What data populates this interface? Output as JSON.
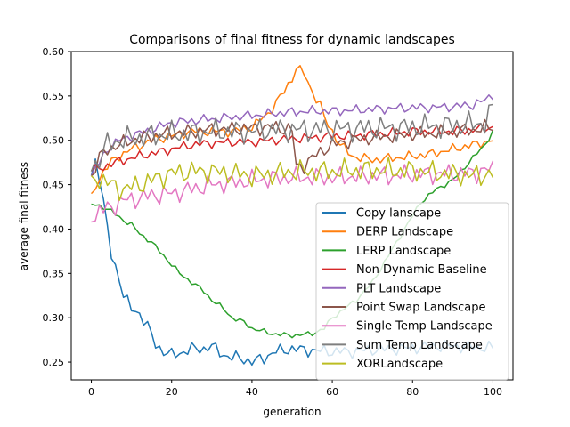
{
  "chart_data": {
    "type": "line",
    "title": "Comparisons of final fitness for dynamic landscapes",
    "xlabel": "generation",
    "ylabel": "average final fitness",
    "xlim": [
      -5,
      105
    ],
    "ylim": [
      0.23,
      0.6
    ],
    "xticks": [
      0,
      20,
      40,
      60,
      80,
      100
    ],
    "xtick_labels": [
      "0",
      "20",
      "40",
      "60",
      "80",
      "100"
    ],
    "yticks": [
      0.25,
      0.3,
      0.35,
      0.4,
      0.45,
      0.5,
      0.55,
      0.6
    ],
    "ytick_labels": [
      "0.25",
      "0.30",
      "0.35",
      "0.40",
      "0.45",
      "0.50",
      "0.55",
      "0.60"
    ],
    "grid": false,
    "legend_position": "lower-right",
    "series": [
      {
        "name": "Copy lanscape",
        "color": "#1f77b4",
        "keys": [
          [
            0,
            0.46
          ],
          [
            1,
            0.478
          ],
          [
            2,
            0.46
          ],
          [
            3,
            0.43
          ],
          [
            4,
            0.4
          ],
          [
            5,
            0.37
          ],
          [
            7,
            0.345
          ],
          [
            8,
            0.325
          ],
          [
            10,
            0.31
          ],
          [
            12,
            0.305
          ],
          [
            14,
            0.29
          ],
          [
            16,
            0.27
          ],
          [
            18,
            0.262
          ],
          [
            20,
            0.258
          ],
          [
            22,
            0.26
          ],
          [
            25,
            0.265
          ],
          [
            28,
            0.265
          ],
          [
            30,
            0.268
          ],
          [
            33,
            0.258
          ],
          [
            35,
            0.255
          ],
          [
            37,
            0.255
          ],
          [
            40,
            0.25
          ],
          [
            43,
            0.255
          ],
          [
            46,
            0.262
          ],
          [
            50,
            0.265
          ],
          [
            55,
            0.263
          ],
          [
            60,
            0.262
          ],
          [
            65,
            0.262
          ],
          [
            70,
            0.264
          ],
          [
            75,
            0.265
          ],
          [
            80,
            0.266
          ],
          [
            85,
            0.268
          ],
          [
            90,
            0.268
          ],
          [
            95,
            0.267
          ],
          [
            100,
            0.266
          ]
        ],
        "amp": 0.005
      },
      {
        "name": "DERP Landscape",
        "color": "#ff7f0e",
        "keys": [
          [
            0,
            0.44
          ],
          [
            3,
            0.465
          ],
          [
            6,
            0.48
          ],
          [
            10,
            0.49
          ],
          [
            15,
            0.5
          ],
          [
            20,
            0.505
          ],
          [
            25,
            0.51
          ],
          [
            30,
            0.51
          ],
          [
            35,
            0.51
          ],
          [
            40,
            0.515
          ],
          [
            44,
            0.53
          ],
          [
            48,
            0.555
          ],
          [
            50,
            0.57
          ],
          [
            51,
            0.582
          ],
          [
            53,
            0.575
          ],
          [
            55,
            0.555
          ],
          [
            57,
            0.54
          ],
          [
            58,
            0.525
          ],
          [
            60,
            0.51
          ],
          [
            62,
            0.495
          ],
          [
            65,
            0.482
          ],
          [
            70,
            0.478
          ],
          [
            75,
            0.48
          ],
          [
            80,
            0.482
          ],
          [
            85,
            0.485
          ],
          [
            90,
            0.49
          ],
          [
            95,
            0.495
          ],
          [
            100,
            0.5
          ]
        ],
        "amp": 0.004
      },
      {
        "name": "LERP Landscape",
        "color": "#2ca02c",
        "keys": [
          [
            0,
            0.428
          ],
          [
            3,
            0.425
          ],
          [
            5,
            0.42
          ],
          [
            8,
            0.41
          ],
          [
            10,
            0.405
          ],
          [
            12,
            0.395
          ],
          [
            15,
            0.385
          ],
          [
            18,
            0.37
          ],
          [
            20,
            0.36
          ],
          [
            22,
            0.35
          ],
          [
            25,
            0.34
          ],
          [
            28,
            0.33
          ],
          [
            30,
            0.32
          ],
          [
            33,
            0.31
          ],
          [
            35,
            0.3
          ],
          [
            38,
            0.295
          ],
          [
            40,
            0.288
          ],
          [
            45,
            0.282
          ],
          [
            50,
            0.28
          ],
          [
            55,
            0.282
          ],
          [
            58,
            0.288
          ],
          [
            60,
            0.3
          ],
          [
            63,
            0.31
          ],
          [
            66,
            0.32
          ],
          [
            70,
            0.34
          ],
          [
            74,
            0.37
          ],
          [
            78,
            0.4
          ],
          [
            82,
            0.43
          ],
          [
            86,
            0.445
          ],
          [
            90,
            0.455
          ],
          [
            93,
            0.47
          ],
          [
            96,
            0.485
          ],
          [
            98,
            0.495
          ],
          [
            100,
            0.51
          ]
        ],
        "amp": 0.002
      },
      {
        "name": "Non Dynamic Baseline",
        "color": "#d62728",
        "keys": [
          [
            0,
            0.465
          ],
          [
            3,
            0.47
          ],
          [
            6,
            0.475
          ],
          [
            10,
            0.48
          ],
          [
            15,
            0.485
          ],
          [
            20,
            0.49
          ],
          [
            25,
            0.495
          ],
          [
            30,
            0.497
          ],
          [
            35,
            0.498
          ],
          [
            40,
            0.498
          ],
          [
            45,
            0.5
          ],
          [
            50,
            0.502
          ],
          [
            55,
            0.503
          ],
          [
            60,
            0.505
          ],
          [
            65,
            0.505
          ],
          [
            70,
            0.507
          ],
          [
            75,
            0.508
          ],
          [
            80,
            0.51
          ],
          [
            85,
            0.51
          ],
          [
            90,
            0.51
          ],
          [
            95,
            0.512
          ],
          [
            100,
            0.515
          ]
        ],
        "amp": 0.004
      },
      {
        "name": "PLT Landscape",
        "color": "#9467bd",
        "keys": [
          [
            0,
            0.46
          ],
          [
            2,
            0.475
          ],
          [
            4,
            0.49
          ],
          [
            7,
            0.5
          ],
          [
            10,
            0.505
          ],
          [
            15,
            0.512
          ],
          [
            20,
            0.52
          ],
          [
            25,
            0.522
          ],
          [
            30,
            0.524
          ],
          [
            35,
            0.526
          ],
          [
            40,
            0.528
          ],
          [
            45,
            0.53
          ],
          [
            50,
            0.532
          ],
          [
            55,
            0.533
          ],
          [
            60,
            0.533
          ],
          [
            65,
            0.534
          ],
          [
            70,
            0.535
          ],
          [
            75,
            0.536
          ],
          [
            80,
            0.537
          ],
          [
            85,
            0.537
          ],
          [
            90,
            0.538
          ],
          [
            95,
            0.54
          ],
          [
            98,
            0.545
          ],
          [
            100,
            0.552
          ]
        ],
        "amp": 0.004
      },
      {
        "name": "Point Swap Landscape",
        "color": "#8c564b",
        "keys": [
          [
            0,
            0.46
          ],
          [
            2,
            0.48
          ],
          [
            4,
            0.49
          ],
          [
            7,
            0.495
          ],
          [
            10,
            0.5
          ],
          [
            15,
            0.505
          ],
          [
            20,
            0.508
          ],
          [
            25,
            0.51
          ],
          [
            30,
            0.512
          ],
          [
            35,
            0.513
          ],
          [
            40,
            0.514
          ],
          [
            45,
            0.515
          ],
          [
            50,
            0.512
          ],
          [
            51,
            0.47
          ],
          [
            53,
            0.472
          ],
          [
            55,
            0.48
          ],
          [
            58,
            0.49
          ],
          [
            60,
            0.495
          ],
          [
            65,
            0.5
          ],
          [
            70,
            0.503
          ],
          [
            75,
            0.505
          ],
          [
            80,
            0.507
          ],
          [
            85,
            0.508
          ],
          [
            90,
            0.51
          ],
          [
            95,
            0.512
          ],
          [
            100,
            0.515
          ]
        ],
        "amp": 0.006
      },
      {
        "name": "Single Temp Landscape",
        "color": "#e377c2",
        "keys": [
          [
            0,
            0.408
          ],
          [
            2,
            0.42
          ],
          [
            5,
            0.425
          ],
          [
            8,
            0.432
          ],
          [
            12,
            0.435
          ],
          [
            15,
            0.438
          ],
          [
            20,
            0.44
          ],
          [
            25,
            0.445
          ],
          [
            30,
            0.45
          ],
          [
            35,
            0.452
          ],
          [
            40,
            0.455
          ],
          [
            45,
            0.457
          ],
          [
            50,
            0.458
          ],
          [
            55,
            0.458
          ],
          [
            60,
            0.458
          ],
          [
            65,
            0.459
          ],
          [
            70,
            0.46
          ],
          [
            75,
            0.46
          ],
          [
            80,
            0.462
          ],
          [
            85,
            0.462
          ],
          [
            90,
            0.462
          ],
          [
            95,
            0.463
          ],
          [
            100,
            0.468
          ]
        ],
        "amp": 0.008
      },
      {
        "name": "Sum Temp Landscape",
        "color": "#7f7f7f",
        "keys": [
          [
            0,
            0.465
          ],
          [
            2,
            0.48
          ],
          [
            4,
            0.495
          ],
          [
            7,
            0.5
          ],
          [
            10,
            0.502
          ],
          [
            15,
            0.505
          ],
          [
            20,
            0.507
          ],
          [
            25,
            0.508
          ],
          [
            30,
            0.51
          ],
          [
            35,
            0.51
          ],
          [
            40,
            0.51
          ],
          [
            45,
            0.512
          ],
          [
            50,
            0.512
          ],
          [
            55,
            0.512
          ],
          [
            60,
            0.513
          ],
          [
            65,
            0.513
          ],
          [
            70,
            0.514
          ],
          [
            75,
            0.514
          ],
          [
            80,
            0.515
          ],
          [
            85,
            0.516
          ],
          [
            90,
            0.517
          ],
          [
            95,
            0.518
          ],
          [
            98,
            0.52
          ],
          [
            100,
            0.535
          ]
        ],
        "amp": 0.01
      },
      {
        "name": "XORLandscape",
        "color": "#bcbd22",
        "keys": [
          [
            0,
            0.46
          ],
          [
            3,
            0.455
          ],
          [
            6,
            0.447
          ],
          [
            8,
            0.445
          ],
          [
            10,
            0.447
          ],
          [
            15,
            0.455
          ],
          [
            20,
            0.463
          ],
          [
            25,
            0.465
          ],
          [
            30,
            0.465
          ],
          [
            35,
            0.463
          ],
          [
            40,
            0.46
          ],
          [
            45,
            0.462
          ],
          [
            50,
            0.465
          ],
          [
            55,
            0.465
          ],
          [
            60,
            0.465
          ],
          [
            65,
            0.466
          ],
          [
            70,
            0.467
          ],
          [
            75,
            0.466
          ],
          [
            80,
            0.466
          ],
          [
            85,
            0.464
          ],
          [
            90,
            0.462
          ],
          [
            95,
            0.46
          ],
          [
            100,
            0.462
          ]
        ],
        "amp": 0.009
      }
    ]
  }
}
